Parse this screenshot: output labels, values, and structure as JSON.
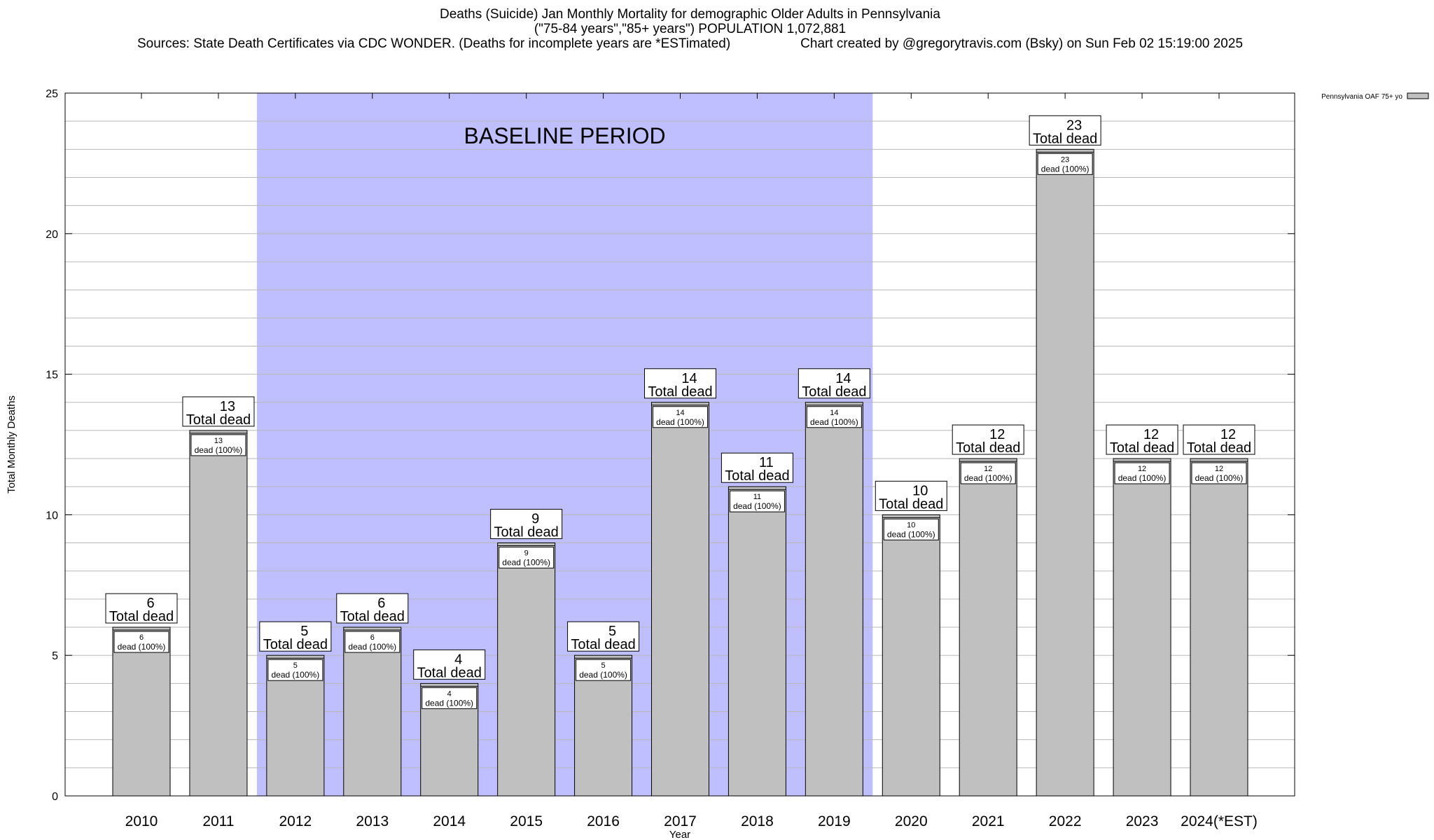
{
  "header": {
    "title_line1": "Deaths (Suicide) Jan Monthly Mortality for demographic Older Adults in Pennsylvania",
    "title_line2": "(\"75-84 years\",\"85+ years\") POPULATION 1,072,881",
    "sources": "Sources: State Death Certificates via CDC WONDER. (Deaths for incomplete years are *ESTimated)",
    "credit": "Chart created by @gregorytravis.com (Bsky) on Sun Feb 02 15:19:00 2025"
  },
  "chart_data": {
    "type": "bar",
    "title": "Deaths (Suicide) Jan Monthly Mortality for demographic Older Adults in Pennsylvania",
    "xlabel": "Year",
    "ylabel": "Total Monthly Deaths",
    "ylim": [
      0,
      25
    ],
    "yticks": [
      0,
      5,
      10,
      15,
      20,
      25
    ],
    "minor_grid_step": 1,
    "categories": [
      "2010",
      "2011",
      "2012",
      "2013",
      "2014",
      "2015",
      "2016",
      "2017",
      "2018",
      "2019",
      "2020",
      "2021",
      "2022",
      "2023",
      "2024(*EST)"
    ],
    "series": [
      {
        "name": "Pennsylvania OAF 75+ yo",
        "color": "#c0c0c0",
        "values": [
          6,
          13,
          5,
          6,
          4,
          9,
          5,
          14,
          11,
          14,
          10,
          12,
          23,
          12,
          12
        ]
      }
    ],
    "total_label": "Total dead",
    "inner_label": "dead (100%)",
    "baseline": {
      "label": "BASELINE PERIOD",
      "start": "2012",
      "end": "2019",
      "color": "#bfbfff"
    },
    "legend": {
      "position": "top-right",
      "label": "Pennsylvania OAF 75+ yo"
    }
  }
}
